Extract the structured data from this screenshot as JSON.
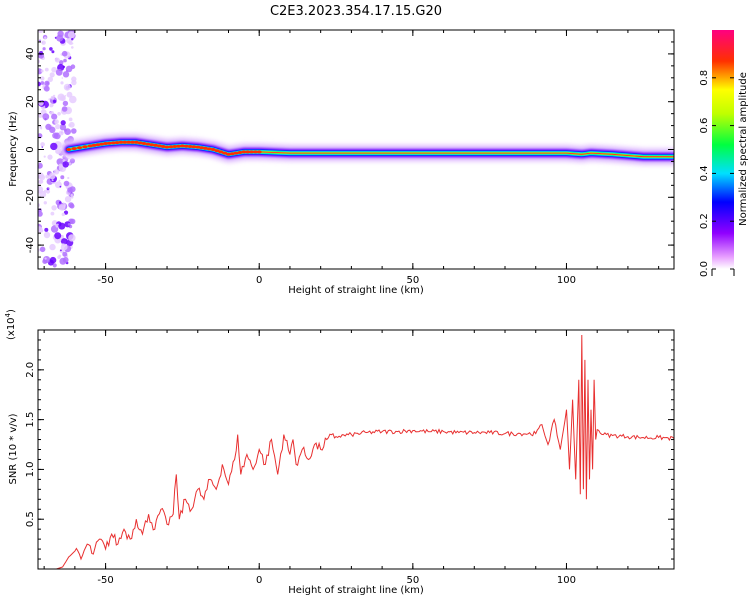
{
  "page": {
    "title": "C2E3.2023.354.17.15.G20"
  },
  "chart_data": [
    {
      "type": "heatmap",
      "xlabel": "Height of straight line (km)",
      "ylabel": "Frequency (Hz)",
      "xlim": [
        -72,
        135
      ],
      "ylim": [
        -50,
        50
      ],
      "xticks": [
        -50,
        0,
        50,
        100
      ],
      "yticks": [
        -40,
        -20,
        0,
        20,
        40
      ],
      "ridge": {
        "x": [
          -62,
          -55,
          -50,
          -45,
          -40,
          -35,
          -30,
          -25,
          -20,
          -15,
          -10,
          -5,
          0,
          10,
          20,
          30,
          40,
          50,
          60,
          70,
          80,
          90,
          100,
          105,
          108,
          115,
          125,
          135
        ],
        "y": [
          0,
          1.5,
          2.5,
          3,
          3,
          2,
          1,
          1.5,
          1,
          0,
          -2,
          -1,
          -1,
          -1.5,
          -1.5,
          -1.5,
          -1.5,
          -1.5,
          -1.5,
          -1.5,
          -1.5,
          -1.5,
          -1.5,
          -2,
          -1.5,
          -2,
          -3,
          -3
        ]
      },
      "colorbar": {
        "label": "Normalized spectral amplitude",
        "range": [
          0,
          1
        ],
        "ticks": [
          "0.0",
          "0.2",
          "0.4",
          "0.6",
          "0.8"
        ],
        "tick_values": [
          0,
          0.2,
          0.4,
          0.6,
          0.8
        ]
      }
    },
    {
      "type": "line",
      "xlabel": "Height of straight line (km)",
      "ylabel": "SNR (10 * v/v)",
      "multiplier": "(x10",
      "multiplier_exp": "4",
      "multiplier_close": ")",
      "xlim": [
        -72,
        135
      ],
      "ylim": [
        0,
        2.4
      ],
      "xticks": [
        -50,
        0,
        50,
        100
      ],
      "yticks": [
        "0.5",
        "1.0",
        "1.5",
        "2.0"
      ],
      "ytick_values": [
        0.5,
        1.0,
        1.5,
        2.0
      ],
      "series": [
        {
          "color": "#e83030",
          "x": [
            -72,
            -66,
            -64,
            -62,
            -60,
            -58,
            -56,
            -54,
            -52,
            -50,
            -48,
            -46,
            -44,
            -42,
            -40,
            -38,
            -36,
            -34,
            -32,
            -30,
            -28,
            -27,
            -26,
            -24,
            -22,
            -20,
            -18,
            -16,
            -14,
            -12,
            -10,
            -8,
            -7,
            -6,
            -4,
            -2,
            0,
            2,
            4,
            6,
            8,
            10,
            11,
            12,
            14,
            16,
            18,
            20,
            22,
            25,
            30,
            35,
            40,
            45,
            50,
            55,
            60,
            65,
            70,
            75,
            80,
            85,
            90,
            92,
            94,
            96,
            98,
            100,
            101,
            102,
            103,
            104,
            104.5,
            105,
            105.5,
            106,
            106.5,
            107,
            107.5,
            108,
            108.5,
            109,
            109.5,
            110,
            112,
            115,
            120,
            125,
            130,
            135
          ],
          "y": [
            0,
            0,
            0.02,
            0.12,
            0.18,
            0.1,
            0.25,
            0.15,
            0.3,
            0.2,
            0.35,
            0.25,
            0.4,
            0.3,
            0.5,
            0.35,
            0.55,
            0.4,
            0.6,
            0.45,
            0.55,
            0.95,
            0.5,
            0.7,
            0.6,
            0.8,
            0.7,
            0.9,
            0.8,
            1.05,
            0.85,
            1.1,
            1.35,
            0.95,
            1.15,
            1.0,
            1.2,
            1.05,
            1.3,
            0.95,
            1.35,
            1.15,
            1.3,
            1.05,
            1.2,
            1.1,
            1.25,
            1.2,
            1.3,
            1.33,
            1.35,
            1.37,
            1.38,
            1.38,
            1.39,
            1.38,
            1.38,
            1.37,
            1.37,
            1.37,
            1.36,
            1.36,
            1.36,
            1.45,
            1.25,
            1.5,
            1.2,
            1.6,
            1.0,
            1.7,
            0.9,
            1.9,
            0.75,
            2.35,
            0.8,
            2.1,
            0.7,
            1.9,
            0.9,
            1.6,
            1.0,
            1.9,
            1.3,
            1.4,
            1.35,
            1.34,
            1.33,
            1.32,
            1.32,
            1.31
          ]
        }
      ]
    }
  ]
}
